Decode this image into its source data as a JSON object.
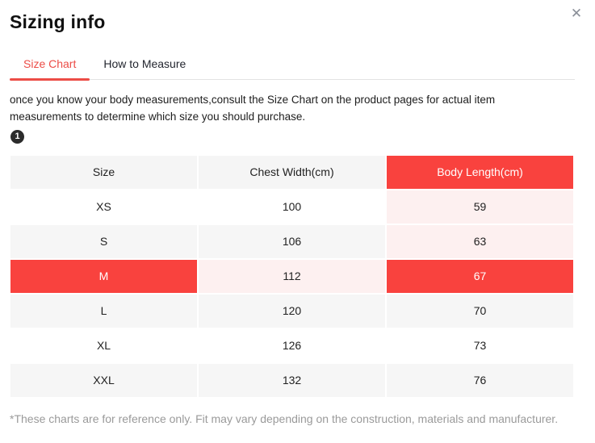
{
  "colors": {
    "accent": "#f9423e",
    "pink": "#fdf0f0",
    "stripe": "#f6f6f6",
    "header_bg": "#f5f5f5",
    "tab_active": "#ec4c46",
    "border": "#e3e3e3",
    "text": "#222222",
    "muted": "#9a9a9a",
    "badge_bg": "#2b2b2b"
  },
  "header": {
    "title": "Sizing info",
    "close_icon": "✕"
  },
  "tabs": [
    {
      "label": "Size Chart",
      "active": true
    },
    {
      "label": "How to Measure",
      "active": false
    }
  ],
  "intro": "once you know your body measurements,consult the Size Chart on the product pages for actual item measurements to determine which size you should purchase.",
  "step_badge": "1",
  "size_chart": {
    "columns": [
      "Size",
      "Chest Width(cm)",
      "Body Length(cm)"
    ],
    "rows": [
      {
        "size": "XS",
        "chest_width": "100",
        "body_length": "59"
      },
      {
        "size": "S",
        "chest_width": "106",
        "body_length": "63"
      },
      {
        "size": "M",
        "chest_width": "112",
        "body_length": "67"
      },
      {
        "size": "L",
        "chest_width": "120",
        "body_length": "70"
      },
      {
        "size": "XL",
        "chest_width": "126",
        "body_length": "73"
      },
      {
        "size": "XXL",
        "chest_width": "132",
        "body_length": "76"
      }
    ],
    "selected_size": "M",
    "highlighted_column": "Body Length(cm)"
  },
  "footnote": "*These charts are for reference only. Fit may vary depending on the construction, materials and manufacturer."
}
